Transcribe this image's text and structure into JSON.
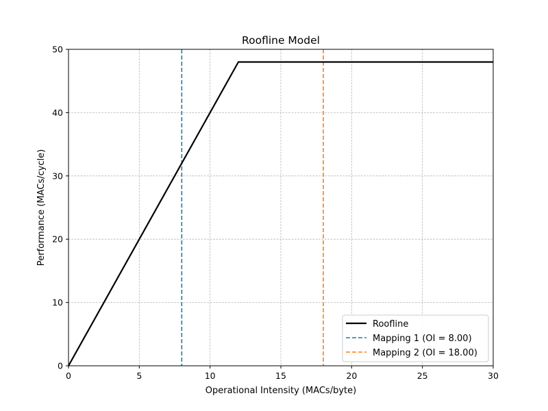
{
  "chart_data": {
    "type": "line",
    "title": "Roofline Model",
    "xlabel": "Operational Intensity (MACs/byte)",
    "ylabel": "Performance (MACs/cycle)",
    "xlim": [
      0,
      30
    ],
    "ylim": [
      0,
      50
    ],
    "xticks": [
      0,
      5,
      10,
      15,
      20,
      25,
      30
    ],
    "xtick_labels": [
      "0",
      "5",
      "10",
      "15",
      "20",
      "25",
      "30"
    ],
    "yticks": [
      0,
      10,
      20,
      30,
      40,
      50
    ],
    "ytick_labels": [
      "0",
      "10",
      "20",
      "30",
      "40",
      "50"
    ],
    "grid": true,
    "legend_position": "lower-right",
    "series": [
      {
        "name": "Roofline",
        "style": "solid",
        "color": "#000000",
        "x": [
          0,
          12,
          30
        ],
        "y": [
          0,
          48,
          48
        ]
      }
    ],
    "vertical_lines": [
      {
        "name": "Mapping 1 (OI = 8.00)",
        "x": 8.0,
        "style": "dashed",
        "color": "#1f77b4"
      },
      {
        "name": "Mapping 2 (OI = 18.00)",
        "x": 18.0,
        "style": "dashed",
        "color": "#ff7f0e"
      }
    ]
  }
}
